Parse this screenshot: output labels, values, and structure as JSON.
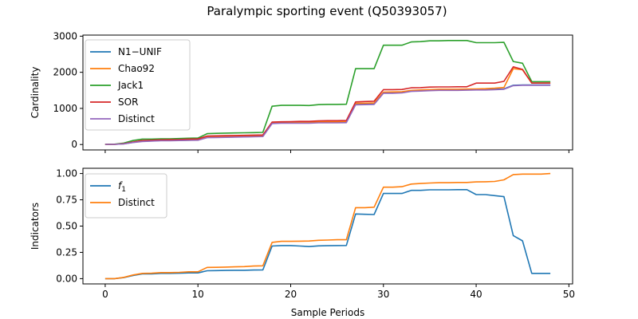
{
  "figure": {
    "title": "Paralympic sporting event (Q50393057)"
  },
  "chart_data": [
    {
      "type": "line",
      "ylabel": "Cardinality",
      "xlabel": "",
      "xlim": [
        -2.4,
        50.4
      ],
      "ylim": [
        -150,
        3030
      ],
      "xticks": [
        0,
        10,
        20,
        30,
        40,
        50
      ],
      "yticks": [
        0,
        1000,
        2000,
        3000
      ],
      "ytick_labels": [
        "0",
        "1000",
        "2000",
        "3000"
      ],
      "grid": false,
      "legend": "top-left",
      "x": [
        0,
        1,
        2,
        3,
        4,
        5,
        6,
        7,
        8,
        9,
        10,
        11,
        12,
        13,
        14,
        15,
        16,
        17,
        18,
        19,
        20,
        21,
        22,
        23,
        24,
        25,
        26,
        27,
        28,
        29,
        30,
        31,
        32,
        33,
        34,
        35,
        36,
        37,
        38,
        39,
        40,
        41,
        42,
        43,
        44,
        45,
        46,
        47,
        48
      ],
      "series": [
        {
          "name": "N1−UNIF",
          "color": "#1f77b4",
          "values": [
            5,
            5,
            20,
            60,
            90,
            100,
            110,
            110,
            115,
            120,
            125,
            200,
            200,
            205,
            210,
            215,
            220,
            225,
            590,
            600,
            600,
            600,
            600,
            610,
            610,
            610,
            615,
            1110,
            1115,
            1120,
            1430,
            1430,
            1440,
            1480,
            1490,
            1500,
            1510,
            1510,
            1510,
            1515,
            1520,
            1520,
            1530,
            1540,
            1640,
            1650,
            1650,
            1650,
            1650
          ]
        },
        {
          "name": "Chao92",
          "color": "#ff7f0e",
          "values": [
            5,
            5,
            20,
            60,
            100,
            110,
            120,
            125,
            130,
            135,
            140,
            215,
            215,
            220,
            225,
            235,
            245,
            250,
            610,
            620,
            620,
            620,
            620,
            630,
            630,
            630,
            640,
            1140,
            1145,
            1150,
            1450,
            1455,
            1460,
            1500,
            1510,
            1520,
            1530,
            1530,
            1530,
            1535,
            1540,
            1545,
            1560,
            1580,
            2100,
            2070,
            1700,
            1700,
            1700
          ]
        },
        {
          "name": "Jack1",
          "color": "#2ca02c",
          "values": [
            5,
            10,
            40,
            110,
            150,
            150,
            160,
            160,
            165,
            175,
            180,
            300,
            310,
            315,
            320,
            325,
            330,
            335,
            1060,
            1085,
            1085,
            1085,
            1080,
            1105,
            1110,
            1110,
            1115,
            2100,
            2100,
            2100,
            2750,
            2750,
            2750,
            2840,
            2850,
            2870,
            2870,
            2880,
            2880,
            2880,
            2820,
            2820,
            2820,
            2830,
            2300,
            2250,
            1740,
            1740,
            1740
          ]
        },
        {
          "name": "SOR",
          "color": "#d62728",
          "values": [
            5,
            5,
            25,
            70,
            110,
            120,
            130,
            135,
            140,
            150,
            155,
            235,
            240,
            245,
            250,
            255,
            260,
            265,
            620,
            630,
            635,
            640,
            640,
            655,
            660,
            660,
            665,
            1180,
            1190,
            1200,
            1520,
            1520,
            1525,
            1570,
            1575,
            1590,
            1595,
            1595,
            1600,
            1600,
            1700,
            1700,
            1700,
            1750,
            2150,
            2080,
            1700,
            1700,
            1700
          ]
        },
        {
          "name": "Distinct",
          "color": "#9467bd",
          "values": [
            5,
            5,
            18,
            55,
            85,
            95,
            105,
            105,
            110,
            115,
            120,
            190,
            195,
            200,
            205,
            210,
            215,
            220,
            580,
            590,
            590,
            590,
            590,
            600,
            600,
            600,
            605,
            1100,
            1105,
            1110,
            1420,
            1420,
            1430,
            1470,
            1480,
            1490,
            1500,
            1500,
            1500,
            1505,
            1510,
            1510,
            1520,
            1530,
            1630,
            1640,
            1640,
            1640,
            1640
          ]
        }
      ]
    },
    {
      "type": "line",
      "ylabel": "Indicators",
      "xlabel": "Sample Periods",
      "xlim": [
        -2.4,
        50.4
      ],
      "ylim": [
        -0.05,
        1.05
      ],
      "xticks": [
        0,
        10,
        20,
        30,
        40,
        50
      ],
      "yticks": [
        0,
        0.25,
        0.5,
        0.75,
        1
      ],
      "ytick_labels": [
        "0.00",
        "0.25",
        "0.50",
        "0.75",
        "1.00"
      ],
      "grid": false,
      "legend": "top-left",
      "x": [
        0,
        1,
        2,
        3,
        4,
        5,
        6,
        7,
        8,
        9,
        10,
        11,
        12,
        13,
        14,
        15,
        16,
        17,
        18,
        19,
        20,
        21,
        22,
        23,
        24,
        25,
        26,
        27,
        28,
        29,
        30,
        31,
        32,
        33,
        34,
        35,
        36,
        37,
        38,
        39,
        40,
        41,
        42,
        43,
        44,
        45,
        46,
        47,
        48
      ],
      "series": [
        {
          "name": "f",
          "name_subscript": "1",
          "color": "#1f77b4",
          "values": [
            0.0,
            0.0,
            0.01,
            0.03,
            0.045,
            0.045,
            0.05,
            0.05,
            0.052,
            0.055,
            0.055,
            0.075,
            0.077,
            0.078,
            0.08,
            0.08,
            0.082,
            0.083,
            0.31,
            0.315,
            0.315,
            0.31,
            0.305,
            0.312,
            0.313,
            0.315,
            0.316,
            0.615,
            0.612,
            0.61,
            0.81,
            0.81,
            0.81,
            0.84,
            0.84,
            0.845,
            0.845,
            0.845,
            0.847,
            0.847,
            0.8,
            0.8,
            0.79,
            0.78,
            0.41,
            0.36,
            0.05,
            0.05,
            0.05
          ]
        },
        {
          "name": "Distinct",
          "color": "#ff7f0e",
          "values": [
            0.0,
            0.0,
            0.012,
            0.035,
            0.05,
            0.052,
            0.058,
            0.058,
            0.06,
            0.065,
            0.065,
            0.107,
            0.108,
            0.11,
            0.112,
            0.115,
            0.12,
            0.122,
            0.345,
            0.355,
            0.355,
            0.357,
            0.358,
            0.365,
            0.367,
            0.37,
            0.37,
            0.675,
            0.675,
            0.68,
            0.87,
            0.87,
            0.875,
            0.9,
            0.905,
            0.91,
            0.913,
            0.913,
            0.915,
            0.915,
            0.92,
            0.922,
            0.925,
            0.94,
            0.99,
            0.995,
            0.995,
            0.995,
            1.0
          ]
        }
      ]
    }
  ]
}
